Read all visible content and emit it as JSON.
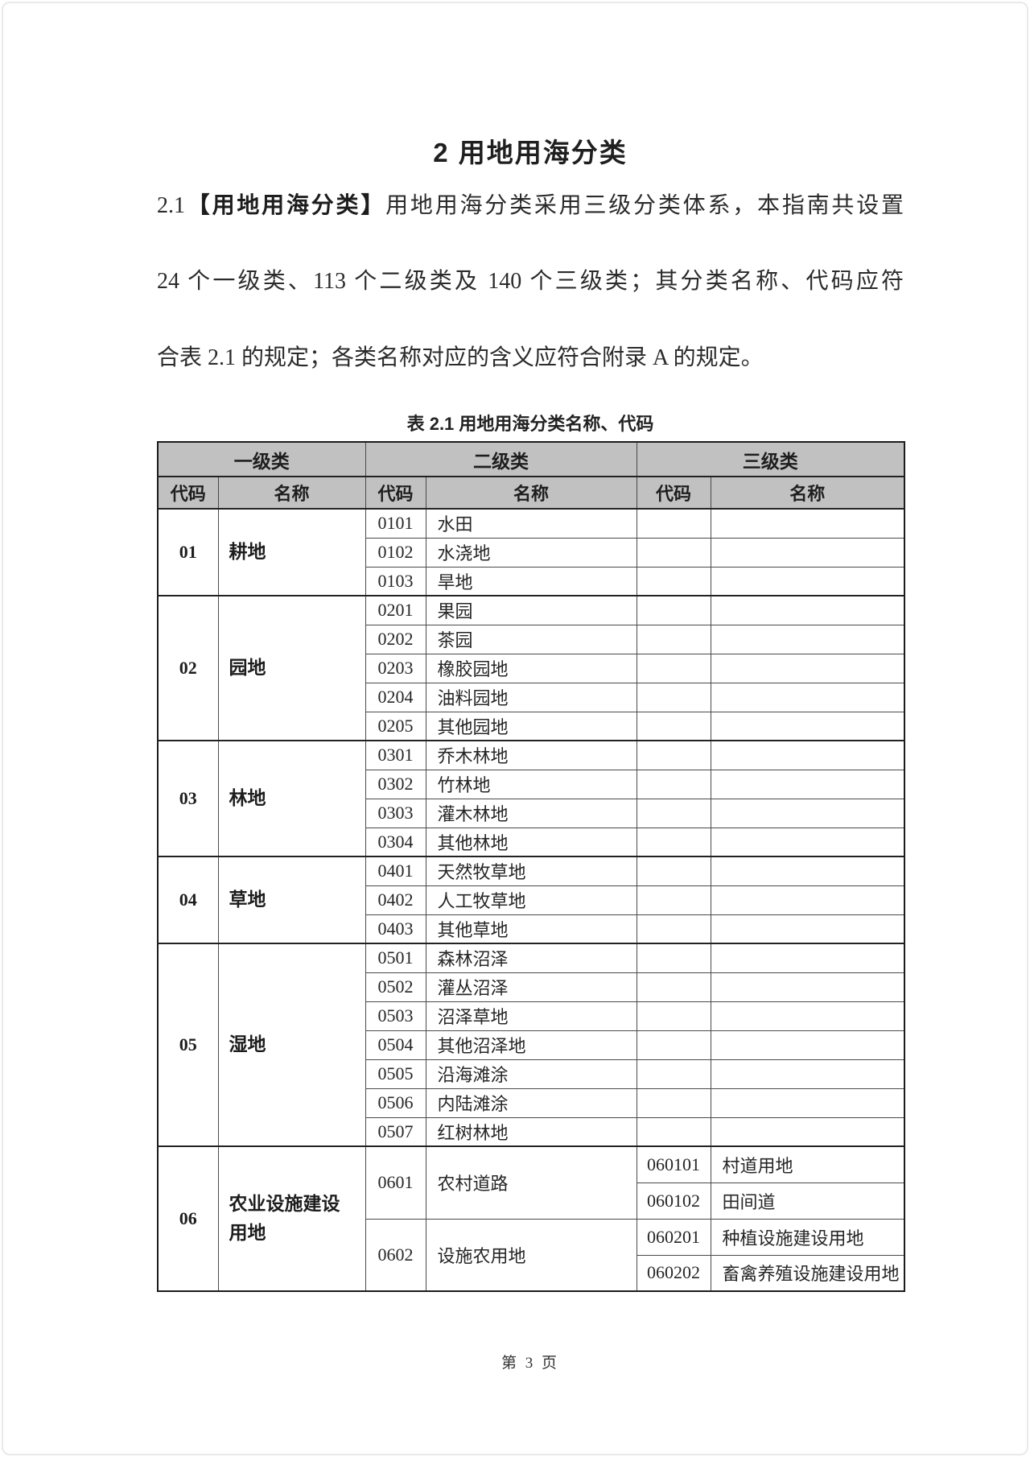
{
  "page": {
    "title": "2 用地用海分类",
    "paragraph": {
      "clause_number": "2.1",
      "term_bold": "【用地用海分类】",
      "line1_rest": "用地用海分类采用三级分类体系，本指南共设置",
      "line2": "24 个一级类、113 个二级类及 140 个三级类；其分类名称、代码应符",
      "line3": "合表 2.1 的规定；各类名称对应的含义应符合附录 A 的规定。"
    },
    "footer": "第 3 页"
  },
  "table": {
    "caption": "表 2.1 用地用海分类名称、代码",
    "headers": {
      "level1": "一级类",
      "level2": "二级类",
      "level3": "三级类",
      "code": "代码",
      "name": "名称"
    },
    "header_bg": "#c1c1c1",
    "sections": [
      {
        "code": "01",
        "name": "耕地",
        "rows": [
          {
            "l2_code": "0101",
            "l2_name": "水田"
          },
          {
            "l2_code": "0102",
            "l2_name": "水浇地"
          },
          {
            "l2_code": "0103",
            "l2_name": "旱地"
          }
        ]
      },
      {
        "code": "02",
        "name": "园地",
        "rows": [
          {
            "l2_code": "0201",
            "l2_name": "果园"
          },
          {
            "l2_code": "0202",
            "l2_name": "茶园"
          },
          {
            "l2_code": "0203",
            "l2_name": "橡胶园地"
          },
          {
            "l2_code": "0204",
            "l2_name": "油料园地"
          },
          {
            "l2_code": "0205",
            "l2_name": "其他园地"
          }
        ]
      },
      {
        "code": "03",
        "name": "林地",
        "rows": [
          {
            "l2_code": "0301",
            "l2_name": "乔木林地"
          },
          {
            "l2_code": "0302",
            "l2_name": "竹林地"
          },
          {
            "l2_code": "0303",
            "l2_name": "灌木林地"
          },
          {
            "l2_code": "0304",
            "l2_name": "其他林地"
          }
        ]
      },
      {
        "code": "04",
        "name": "草地",
        "rows": [
          {
            "l2_code": "0401",
            "l2_name": "天然牧草地"
          },
          {
            "l2_code": "0402",
            "l2_name": "人工牧草地"
          },
          {
            "l2_code": "0403",
            "l2_name": "其他草地"
          }
        ]
      },
      {
        "code": "05",
        "name": "湿地",
        "rows": [
          {
            "l2_code": "0501",
            "l2_name": "森林沼泽"
          },
          {
            "l2_code": "0502",
            "l2_name": "灌丛沼泽"
          },
          {
            "l2_code": "0503",
            "l2_name": "沼泽草地"
          },
          {
            "l2_code": "0504",
            "l2_name": "其他沼泽地"
          },
          {
            "l2_code": "0505",
            "l2_name": "沿海滩涂"
          },
          {
            "l2_code": "0506",
            "l2_name": "内陆滩涂"
          },
          {
            "l2_code": "0507",
            "l2_name": "红树林地"
          }
        ]
      },
      {
        "code": "06",
        "name": "农业设施建设用地",
        "rows": [
          {
            "l2_code": "0601",
            "l2_name": "农村道路",
            "l2_span": 2,
            "l3_code": "060101",
            "l3_name": "村道用地",
            "tall": true
          },
          {
            "l3_code": "060102",
            "l3_name": "田间道",
            "tall": true
          },
          {
            "l2_code": "0602",
            "l2_name": "设施农用地",
            "l2_span": 2,
            "l3_code": "060201",
            "l3_name": "种植设施建设用地",
            "tall": true
          },
          {
            "l3_code": "060202",
            "l3_name": "畜禽养殖设施建设用地",
            "tall": true
          }
        ]
      }
    ]
  }
}
